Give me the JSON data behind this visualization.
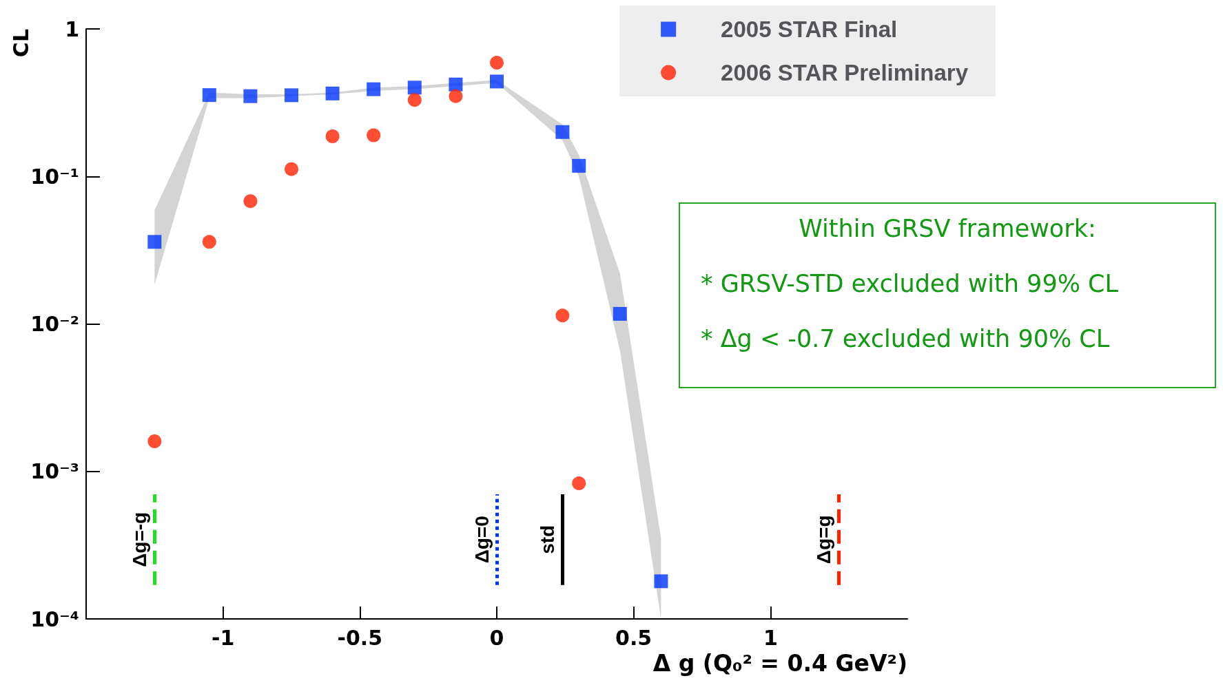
{
  "chart_data": {
    "type": "scatter",
    "xlabel": "Δ g (Q₀² = 0.4 GeV²)",
    "ylabel": "CL",
    "log": "y",
    "grid": false,
    "legend": "top right",
    "xlim": [
      -1.5,
      1.5
    ],
    "xticks": [
      -1,
      -0.5,
      0,
      0.5,
      1
    ],
    "ylim": [
      0.0001,
      1
    ],
    "yticks": [
      {
        "value": 1,
        "label": "1"
      },
      {
        "value": 0.1,
        "label": "10⁻¹"
      },
      {
        "value": 0.01,
        "label": "10⁻²"
      },
      {
        "value": 0.001,
        "label": "10⁻³"
      },
      {
        "value": 0.0001,
        "label": "10⁻⁴"
      }
    ],
    "series": [
      {
        "name": "2005 STAR Final",
        "color": "#0033ff",
        "marker": "square",
        "x": [
          -1.25,
          -1.05,
          -0.9,
          -0.75,
          -0.6,
          -0.45,
          -0.3,
          -0.15,
          0,
          0.24,
          0.3,
          0.45,
          0.6
        ],
        "values": [
          0.036,
          0.356,
          0.35,
          0.355,
          0.365,
          0.39,
          0.4,
          0.42,
          0.44,
          0.2,
          0.118,
          0.0117,
          0.00018
        ],
        "lower": [
          0.0185,
          0.34,
          0.34,
          0.35,
          0.36,
          0.38,
          0.39,
          0.41,
          0.43,
          0.176,
          0.1,
          0.0066,
          0.0001
        ],
        "upper": [
          0.059,
          0.37,
          0.36,
          0.36,
          0.37,
          0.4,
          0.41,
          0.43,
          0.45,
          0.225,
          0.14,
          0.022,
          0.00035
        ]
      },
      {
        "name": "2006 STAR Preliminary",
        "color": "#ff2200",
        "marker": "circle",
        "x": [
          -1.25,
          -1.05,
          -0.9,
          -0.75,
          -0.6,
          -0.45,
          -0.3,
          -0.15,
          0,
          0.24,
          0.3
        ],
        "values": [
          0.0016,
          0.036,
          0.068,
          0.112,
          0.187,
          0.19,
          0.33,
          0.35,
          0.59,
          0.0114,
          0.00083
        ]
      }
    ],
    "ref_lines": [
      {
        "axis": "x",
        "value": -1.25,
        "label": "Δg=-g",
        "color": "#22dd22",
        "line_style": "dashed"
      },
      {
        "axis": "x",
        "value": 0,
        "label": "Δg=0",
        "color": "#0033ff",
        "line_style": "dotted"
      },
      {
        "axis": "x",
        "value": 0.24,
        "label": "std",
        "color": "#000000",
        "line_style": "solid"
      },
      {
        "axis": "x",
        "value": 1.25,
        "label": "Δg=g",
        "color": "#ff2200",
        "line_style": "dashed"
      }
    ],
    "annotations": [
      "Within GRSV framework:",
      "* GRSV-STD excluded with 99% CL",
      "* Δg < -0.7 excluded with 90% CL"
    ]
  }
}
